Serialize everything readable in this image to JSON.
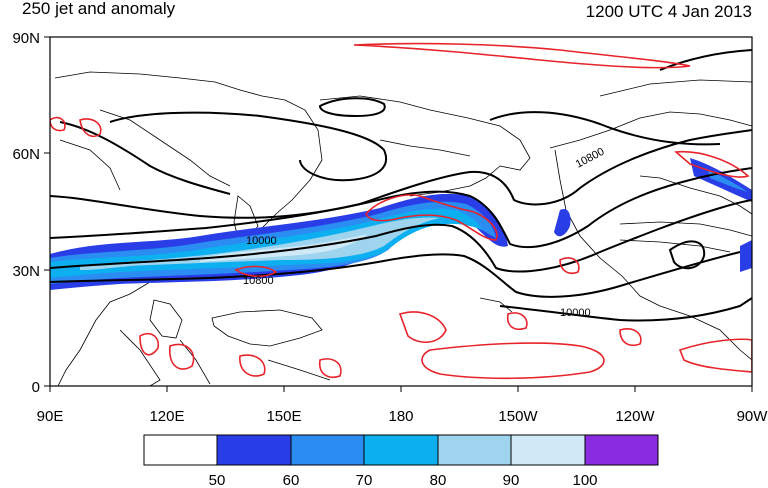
{
  "title_left": "250 jet and anomaly",
  "title_right": "1200 UTC 4 Jan 2013",
  "axes": {
    "x_ticks": [
      "90E",
      "120E",
      "150E",
      "180",
      "150W",
      "120W",
      "90W"
    ],
    "y_ticks": [
      "90N",
      "60N",
      "30N",
      "0"
    ]
  },
  "contour_labels": [
    "10000",
    "10800",
    "10800",
    "10000"
  ],
  "colorbar": {
    "labels": [
      "50",
      "60",
      "70",
      "80",
      "90",
      "100"
    ],
    "colors": [
      "#ffffff",
      "#2a3ee8",
      "#2b8cf2",
      "#0cb0f0",
      "#9fd4ef",
      "#cfe9f7",
      "#8a2be2"
    ]
  },
  "colors": {
    "jet_light": "#cfe9f7",
    "jet_mid": "#9fd4ef",
    "jet_cyan": "#0cb0f0",
    "jet_blue": "#2b8cf2",
    "jet_dark": "#2a3ee8",
    "anomaly": "#e8242b",
    "height": "#000000"
  }
}
